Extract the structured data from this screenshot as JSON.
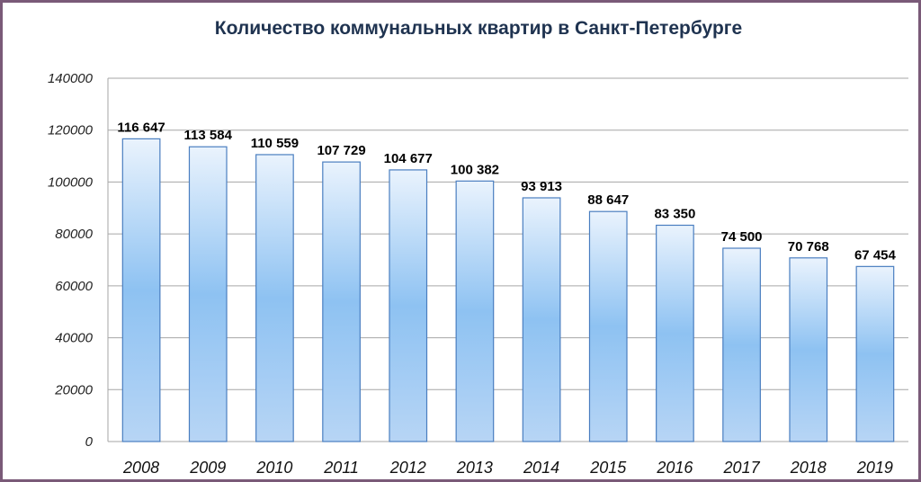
{
  "chart_data": {
    "type": "bar",
    "title": "Количество коммунальных квартир в Санкт-Петербурге",
    "xlabel": "",
    "ylabel": "",
    "ylim": [
      0,
      140000
    ],
    "yticks": [
      "0",
      "20000",
      "40000",
      "60000",
      "80000",
      "100000",
      "120000",
      "140000"
    ],
    "grid": true,
    "categories": [
      "2008",
      "2009",
      "2010",
      "2011",
      "2012",
      "2013",
      "2014",
      "2015",
      "2016",
      "2017",
      "2018",
      "2019"
    ],
    "values": [
      116647,
      113584,
      110559,
      107729,
      104677,
      100382,
      93913,
      88647,
      83350,
      74500,
      70768,
      67454
    ],
    "data_labels": [
      "116 647",
      "113 584",
      "110 559",
      "107 729",
      "104 677",
      "100 382",
      "93 913",
      "88 647",
      "83 350",
      "74 500",
      "70 768",
      "67 454"
    ],
    "colors": {
      "bar_light": "#eaf3fd",
      "bar_mid": "#8ec2f2",
      "bar_bottom": "#b7d5f5",
      "bar_edge": "#4a7ec0",
      "grid": "#a6a6a6",
      "title": "#1f3350",
      "frame": "#7a5a78"
    }
  }
}
